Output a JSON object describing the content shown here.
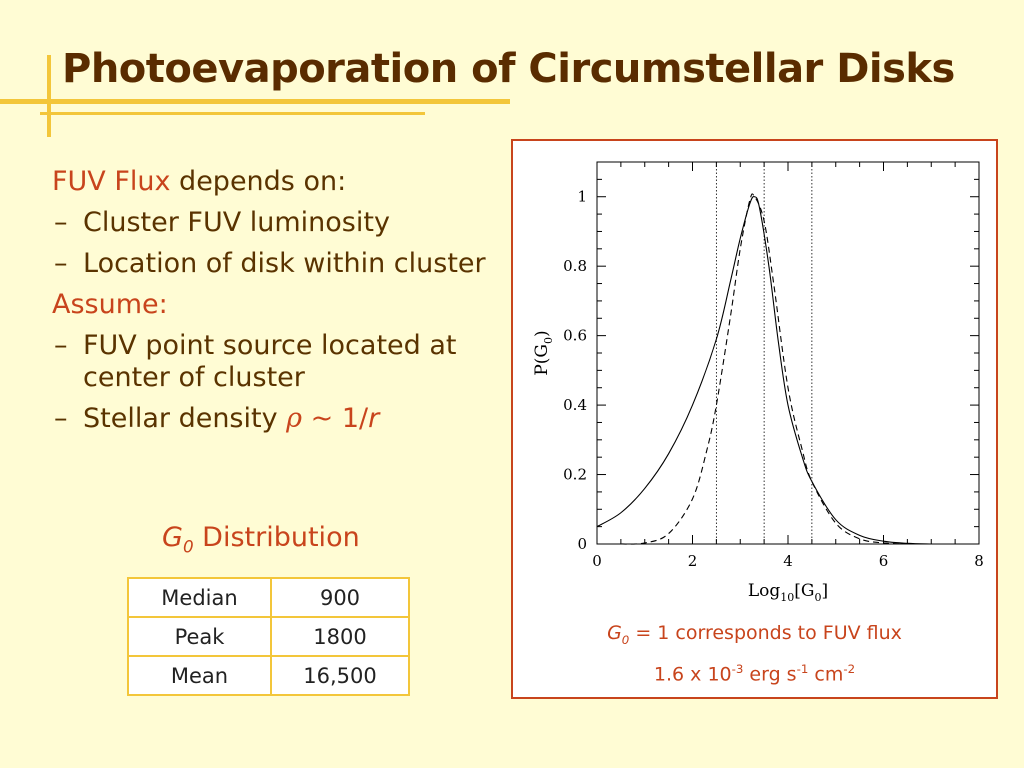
{
  "title": "Photoevaporation of Circumstellar Disks",
  "bullets": {
    "fuv_flux": "FUV Flux",
    "depends_on": " depends on:",
    "item1": "Cluster FUV luminosity",
    "item2": "Location of disk within cluster",
    "assume": "Assume:",
    "item3": "FUV point source located at center of cluster",
    "item4_prefix": "Stellar density ",
    "item4_rho": "ρ",
    "item4_suffix": " ~ 1/",
    "item4_r": "r",
    "dash": "–"
  },
  "distribution": {
    "g": "G",
    "sub": "0",
    "label": " Distribution",
    "rows": [
      {
        "key": "Median",
        "value": "900"
      },
      {
        "key": "Peak",
        "value": "1800"
      },
      {
        "key": "Mean",
        "value": "16,500"
      }
    ]
  },
  "caption": {
    "g": "G",
    "sub": "0",
    "line1_rest": " = 1 corresponds to FUV flux",
    "line2_a": "1.6 x 10",
    "exp1": "-3",
    "line2_b": " erg s",
    "exp2": "-1",
    "line2_c": " cm",
    "exp3": "-2"
  },
  "chart_data": {
    "type": "line",
    "xlabel": "Log10[G0]",
    "ylabel": "P(G0)",
    "xlim": [
      0,
      8
    ],
    "ylim": [
      0,
      1.1
    ],
    "xticks": [
      0,
      2,
      4,
      6,
      8
    ],
    "yticks": [
      0,
      0.2,
      0.4,
      0.6,
      0.8,
      1
    ],
    "vlines": [
      2.5,
      3.5,
      4.5
    ],
    "series": [
      {
        "style": "solid",
        "x": [
          0,
          0.5,
          1.0,
          1.5,
          2.0,
          2.5,
          2.8,
          3.0,
          3.2,
          3.3,
          3.4,
          3.6,
          3.8,
          4.0,
          4.3,
          4.5,
          5.0,
          5.5,
          6.0,
          6.5,
          7.0
        ],
        "y": [
          0.05,
          0.09,
          0.16,
          0.26,
          0.4,
          0.59,
          0.76,
          0.88,
          0.98,
          1.0,
          0.97,
          0.8,
          0.58,
          0.4,
          0.25,
          0.18,
          0.07,
          0.025,
          0.008,
          0.002,
          0.0
        ]
      },
      {
        "style": "dashed",
        "x": [
          0.5,
          1.0,
          1.5,
          2.0,
          2.3,
          2.5,
          2.8,
          3.0,
          3.2,
          3.3,
          3.5,
          3.7,
          4.0,
          4.3,
          4.5,
          5.0,
          5.5,
          6.0,
          6.5
        ],
        "y": [
          0.0,
          0.003,
          0.03,
          0.13,
          0.27,
          0.4,
          0.66,
          0.85,
          0.99,
          1.0,
          0.93,
          0.75,
          0.45,
          0.27,
          0.18,
          0.06,
          0.015,
          0.003,
          0.0
        ]
      }
    ]
  }
}
